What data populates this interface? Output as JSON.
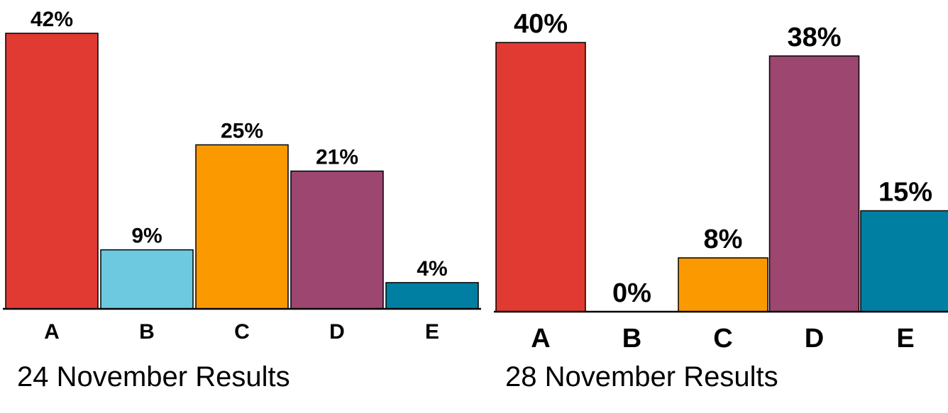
{
  "chart_data": [
    {
      "type": "bar",
      "title": "24 November Results",
      "categories": [
        "A",
        "B",
        "C",
        "D",
        "E"
      ],
      "values": [
        42,
        9,
        25,
        21,
        4
      ],
      "value_labels": [
        "42%",
        "9%",
        "25%",
        "21%",
        "4%"
      ],
      "colors": [
        "#e03a33",
        "#6dc9e0",
        "#fb9a00",
        "#9c4670",
        "#007fa3"
      ],
      "ylim": [
        0,
        42
      ],
      "grid": false,
      "legend": "none"
    },
    {
      "type": "bar",
      "title": "28 November Results",
      "categories": [
        "A",
        "B",
        "C",
        "D",
        "E"
      ],
      "values": [
        40,
        0,
        8,
        38,
        15
      ],
      "value_labels": [
        "40%",
        "0%",
        "8%",
        "38%",
        "15%"
      ],
      "colors": [
        "#e03a33",
        "#6dc9e0",
        "#fb9a00",
        "#9c4670",
        "#007fa3"
      ],
      "ylim": [
        0,
        40
      ],
      "grid": false,
      "legend": "none"
    }
  ]
}
